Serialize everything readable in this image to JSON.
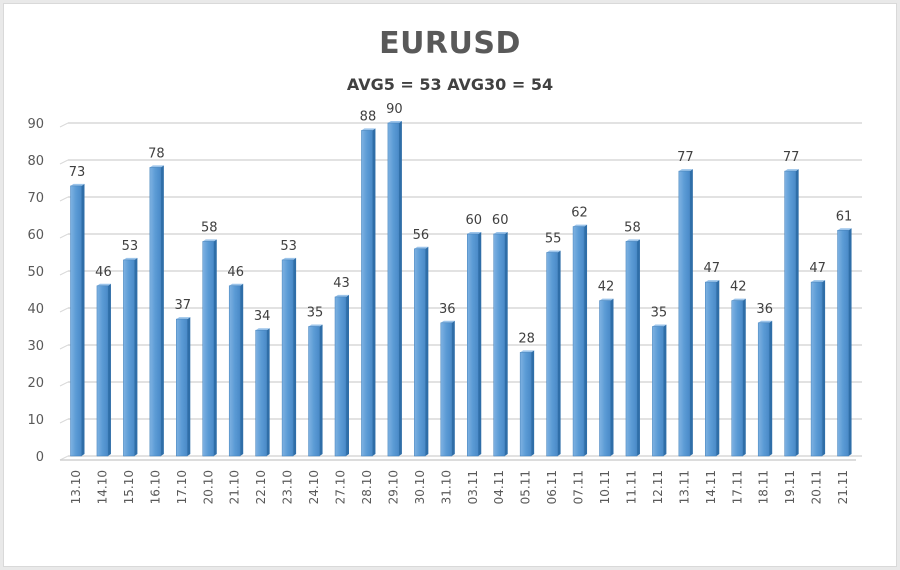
{
  "chart_data": {
    "type": "bar",
    "title": "EURUSD",
    "subtitle": "AVG5 = 53 AVG30 = 54",
    "xlabel": "",
    "ylabel": "",
    "ylim": [
      0,
      90
    ],
    "yticks": [
      0,
      10,
      20,
      30,
      40,
      50,
      60,
      70,
      80,
      90
    ],
    "grid": true,
    "legend": null,
    "bar_color": "#5b9bd5",
    "categories": [
      "13.10",
      "14.10",
      "15.10",
      "16.10",
      "17.10",
      "20.10",
      "21.10",
      "22.10",
      "23.10",
      "24.10",
      "27.10",
      "28.10",
      "29.10",
      "30.10",
      "31.10",
      "03.11",
      "04.11",
      "05.11",
      "06.11",
      "07.11",
      "10.11",
      "11.11",
      "12.11",
      "13.11",
      "14.11",
      "17.11",
      "18.11",
      "19.11",
      "20.11",
      "21.11"
    ],
    "values": [
      73,
      46,
      53,
      78,
      37,
      58,
      46,
      34,
      53,
      35,
      43,
      88,
      90,
      56,
      36,
      60,
      60,
      28,
      55,
      62,
      42,
      58,
      35,
      77,
      47,
      42,
      36,
      77,
      47,
      61
    ]
  }
}
